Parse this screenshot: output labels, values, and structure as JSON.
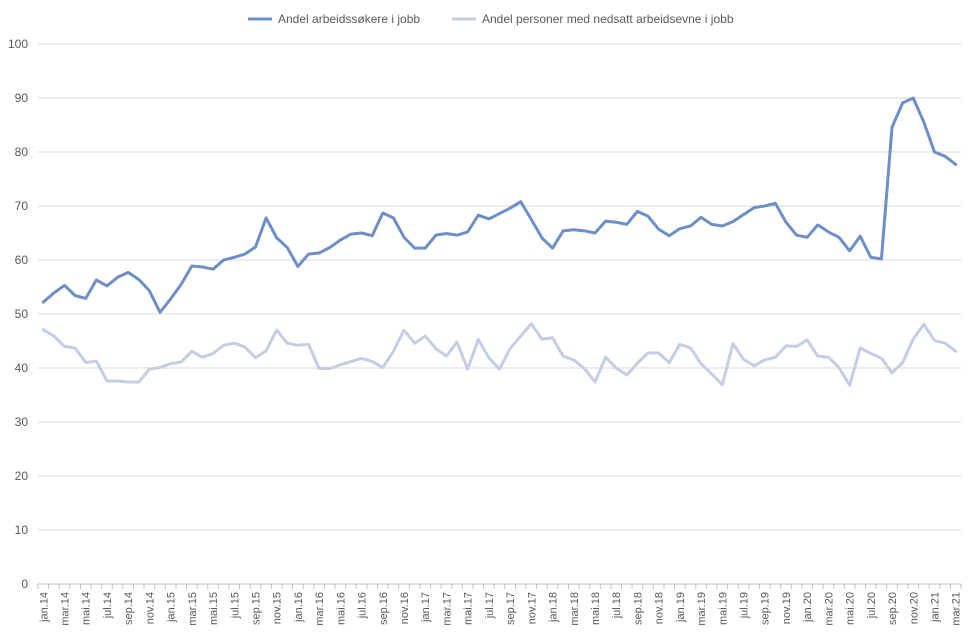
{
  "chart_data": {
    "type": "line",
    "title": "",
    "xlabel": "",
    "ylabel": "",
    "ylim": [
      0,
      100
    ],
    "yticks": [
      0,
      10,
      20,
      30,
      40,
      50,
      60,
      70,
      80,
      90,
      100
    ],
    "grid": "horizontal",
    "legend": "top",
    "x": [
      "jan.14",
      "feb.14",
      "mar.14",
      "apr.14",
      "mai.14",
      "jun.14",
      "jul.14",
      "aug.14",
      "sep.14",
      "okt.14",
      "nov.14",
      "des.14",
      "jan.15",
      "feb.15",
      "mar.15",
      "apr.15",
      "mai.15",
      "jun.15",
      "jul.15",
      "aug.15",
      "sep.15",
      "okt.15",
      "nov.15",
      "des.15",
      "jan.16",
      "feb.16",
      "mar.16",
      "apr.16",
      "mai.16",
      "jun.16",
      "jul.16",
      "aug.16",
      "sep.16",
      "okt.16",
      "nov.16",
      "des.16",
      "jan.17",
      "feb.17",
      "mar.17",
      "apr.17",
      "mai.17",
      "jun.17",
      "jul.17",
      "aug.17",
      "sep.17",
      "okt.17",
      "nov.17",
      "des.17",
      "jan.18",
      "feb.18",
      "mar.18",
      "apr.18",
      "mai.18",
      "jun.18",
      "jul.18",
      "aug.18",
      "sep.18",
      "okt.18",
      "nov.18",
      "des.18",
      "jan.19",
      "feb.19",
      "mar.19",
      "apr.19",
      "mai.19",
      "jun.19",
      "jul.19",
      "aug.19",
      "sep.19",
      "okt.19",
      "nov.19",
      "des.19",
      "jan.20",
      "feb.20",
      "mar.20",
      "apr.20",
      "mai.20",
      "jun.20",
      "jul.20",
      "aug.20",
      "sep.20",
      "okt.20",
      "nov.20",
      "des.20",
      "jan.21",
      "feb.21",
      "mar.21"
    ],
    "tick_labels": [
      "jan.14",
      "mar.14",
      "mai.14",
      "jul.14",
      "sep.14",
      "nov.14",
      "jan.15",
      "mar.15",
      "mai.15",
      "jul.15",
      "sep.15",
      "nov.15",
      "jan.16",
      "mar.16",
      "mai.16",
      "jul.16",
      "sep.16",
      "nov.16",
      "jan.17",
      "mar.17",
      "mai.17",
      "jul.17",
      "sep.17",
      "nov.17",
      "jan.18",
      "mar.18",
      "mai.18",
      "jul.18",
      "sep.18",
      "nov.18",
      "jan.19",
      "mar.19",
      "mai.19",
      "jul.19",
      "sep.19",
      "nov.19",
      "jan.20",
      "mar.20",
      "mai.20",
      "jul.20",
      "sep.20",
      "nov.20",
      "jan.21",
      "mar.21"
    ],
    "series": [
      {
        "name": "Andel arbeidssøkere i jobb",
        "color": "#6b8fc6",
        "values": [
          52.2,
          53.9,
          55.3,
          53.4,
          52.9,
          56.3,
          55.2,
          56.8,
          57.7,
          56.4,
          54.3,
          50.3,
          52.8,
          55.5,
          58.9,
          58.7,
          58.3,
          60.0,
          60.5,
          61.1,
          62.4,
          67.8,
          64.1,
          62.3,
          58.8,
          61.1,
          61.3,
          62.3,
          63.7,
          64.8,
          65.0,
          64.5,
          68.7,
          67.8,
          64.2,
          62.2,
          62.2,
          64.6,
          64.9,
          64.6,
          65.2,
          68.3,
          67.6,
          68.6,
          69.6,
          70.8,
          67.5,
          64.1,
          62.2,
          65.4,
          65.6,
          65.4,
          65.0,
          67.2,
          67.0,
          66.6,
          69.0,
          68.1,
          65.7,
          64.5,
          65.8,
          66.3,
          67.9,
          66.6,
          66.3,
          67.1,
          68.4,
          69.7,
          70.0,
          70.5,
          67.0,
          64.6,
          64.2,
          66.5,
          65.2,
          64.2,
          61.7,
          64.4,
          60.5,
          60.2,
          84.6,
          89.1,
          90.0,
          85.5,
          80.0,
          79.2,
          77.7
        ]
      },
      {
        "name": "Andel personer med nedsatt arbeidsevne i jobb",
        "color": "#c5cde6",
        "values": [
          47.1,
          45.9,
          44.0,
          43.7,
          41.0,
          41.3,
          37.6,
          37.6,
          37.4,
          37.4,
          39.8,
          40.1,
          40.8,
          41.1,
          43.1,
          42.0,
          42.7,
          44.2,
          44.6,
          43.9,
          41.9,
          43.2,
          47.0,
          44.6,
          44.2,
          44.4,
          39.9,
          39.9,
          40.6,
          41.2,
          41.8,
          41.2,
          40.1,
          43.1,
          47.0,
          44.6,
          45.9,
          43.6,
          42.2,
          44.8,
          39.8,
          45.3,
          41.9,
          39.8,
          43.6,
          45.9,
          48.2,
          45.3,
          45.6,
          42.2,
          41.5,
          39.9,
          37.4,
          42.0,
          40.0,
          38.7,
          40.9,
          42.8,
          42.8,
          41.0,
          44.4,
          43.7,
          40.8,
          38.9,
          36.9,
          44.5,
          41.6,
          40.4,
          41.5,
          42.0,
          44.1,
          44.0,
          45.2,
          42.2,
          42.0,
          40.1,
          36.8,
          43.7,
          42.7,
          41.8,
          39.1,
          41.0,
          45.4,
          48.1,
          45.1,
          44.6,
          43.1
        ]
      }
    ]
  }
}
